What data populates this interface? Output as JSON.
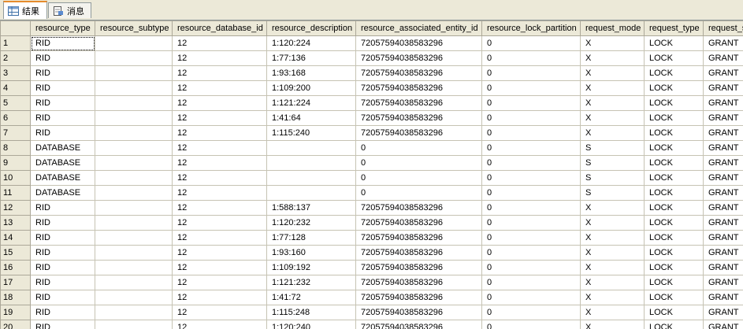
{
  "tabs": [
    "结果",
    "消息"
  ],
  "grid": {
    "columns": [
      "resource_type",
      "resource_subtype",
      "resource_database_id",
      "resource_description",
      "resource_associated_entity_id",
      "resource_lock_partition",
      "request_mode",
      "request_type",
      "request_status"
    ],
    "rows": [
      {
        "num": 1,
        "cells": [
          "RID",
          null,
          "12",
          "1:120:224",
          "72057594038583296",
          "0",
          "X",
          "LOCK",
          "GRANT"
        ]
      },
      {
        "num": 2,
        "cells": [
          "RID",
          null,
          "12",
          "1:77:136",
          "72057594038583296",
          "0",
          "X",
          "LOCK",
          "GRANT"
        ]
      },
      {
        "num": 3,
        "cells": [
          "RID",
          null,
          "12",
          "1:93:168",
          "72057594038583296",
          "0",
          "X",
          "LOCK",
          "GRANT"
        ]
      },
      {
        "num": 4,
        "cells": [
          "RID",
          null,
          "12",
          "1:109:200",
          "72057594038583296",
          "0",
          "X",
          "LOCK",
          "GRANT"
        ]
      },
      {
        "num": 5,
        "cells": [
          "RID",
          null,
          "12",
          "1:121:224",
          "72057594038583296",
          "0",
          "X",
          "LOCK",
          "GRANT"
        ]
      },
      {
        "num": 6,
        "cells": [
          "RID",
          null,
          "12",
          "1:41:64",
          "72057594038583296",
          "0",
          "X",
          "LOCK",
          "GRANT"
        ]
      },
      {
        "num": 7,
        "cells": [
          "RID",
          null,
          "12",
          "1:115:240",
          "72057594038583296",
          "0",
          "X",
          "LOCK",
          "GRANT"
        ]
      },
      {
        "num": 8,
        "cells": [
          "DATABASE",
          null,
          "12",
          null,
          "0",
          "0",
          "S",
          "LOCK",
          "GRANT"
        ]
      },
      {
        "num": 9,
        "cells": [
          "DATABASE",
          null,
          "12",
          null,
          "0",
          "0",
          "S",
          "LOCK",
          "GRANT"
        ]
      },
      {
        "num": 10,
        "cells": [
          "DATABASE",
          null,
          "12",
          null,
          "0",
          "0",
          "S",
          "LOCK",
          "GRANT"
        ]
      },
      {
        "num": 11,
        "cells": [
          "DATABASE",
          null,
          "12",
          null,
          "0",
          "0",
          "S",
          "LOCK",
          "GRANT"
        ]
      },
      {
        "num": 12,
        "cells": [
          "RID",
          null,
          "12",
          "1:588:137",
          "72057594038583296",
          "0",
          "X",
          "LOCK",
          "GRANT"
        ]
      },
      {
        "num": 13,
        "cells": [
          "RID",
          null,
          "12",
          "1:120:232",
          "72057594038583296",
          "0",
          "X",
          "LOCK",
          "GRANT"
        ]
      },
      {
        "num": 14,
        "cells": [
          "RID",
          null,
          "12",
          "1:77:128",
          "72057594038583296",
          "0",
          "X",
          "LOCK",
          "GRANT"
        ]
      },
      {
        "num": 15,
        "cells": [
          "RID",
          null,
          "12",
          "1:93:160",
          "72057594038583296",
          "0",
          "X",
          "LOCK",
          "GRANT"
        ]
      },
      {
        "num": 16,
        "cells": [
          "RID",
          null,
          "12",
          "1:109:192",
          "72057594038583296",
          "0",
          "X",
          "LOCK",
          "GRANT"
        ]
      },
      {
        "num": 17,
        "cells": [
          "RID",
          null,
          "12",
          "1:121:232",
          "72057594038583296",
          "0",
          "X",
          "LOCK",
          "GRANT"
        ]
      },
      {
        "num": 18,
        "cells": [
          "RID",
          null,
          "12",
          "1:41:72",
          "72057594038583296",
          "0",
          "X",
          "LOCK",
          "GRANT"
        ]
      },
      {
        "num": 19,
        "cells": [
          "RID",
          null,
          "12",
          "1:115:248",
          "72057594038583296",
          "0",
          "X",
          "LOCK",
          "GRANT"
        ]
      },
      {
        "num": 20,
        "cells": [
          "RID",
          null,
          "12",
          "1:120:240",
          "72057594038583296",
          "0",
          "X",
          "LOCK",
          "GRANT"
        ]
      }
    ]
  }
}
